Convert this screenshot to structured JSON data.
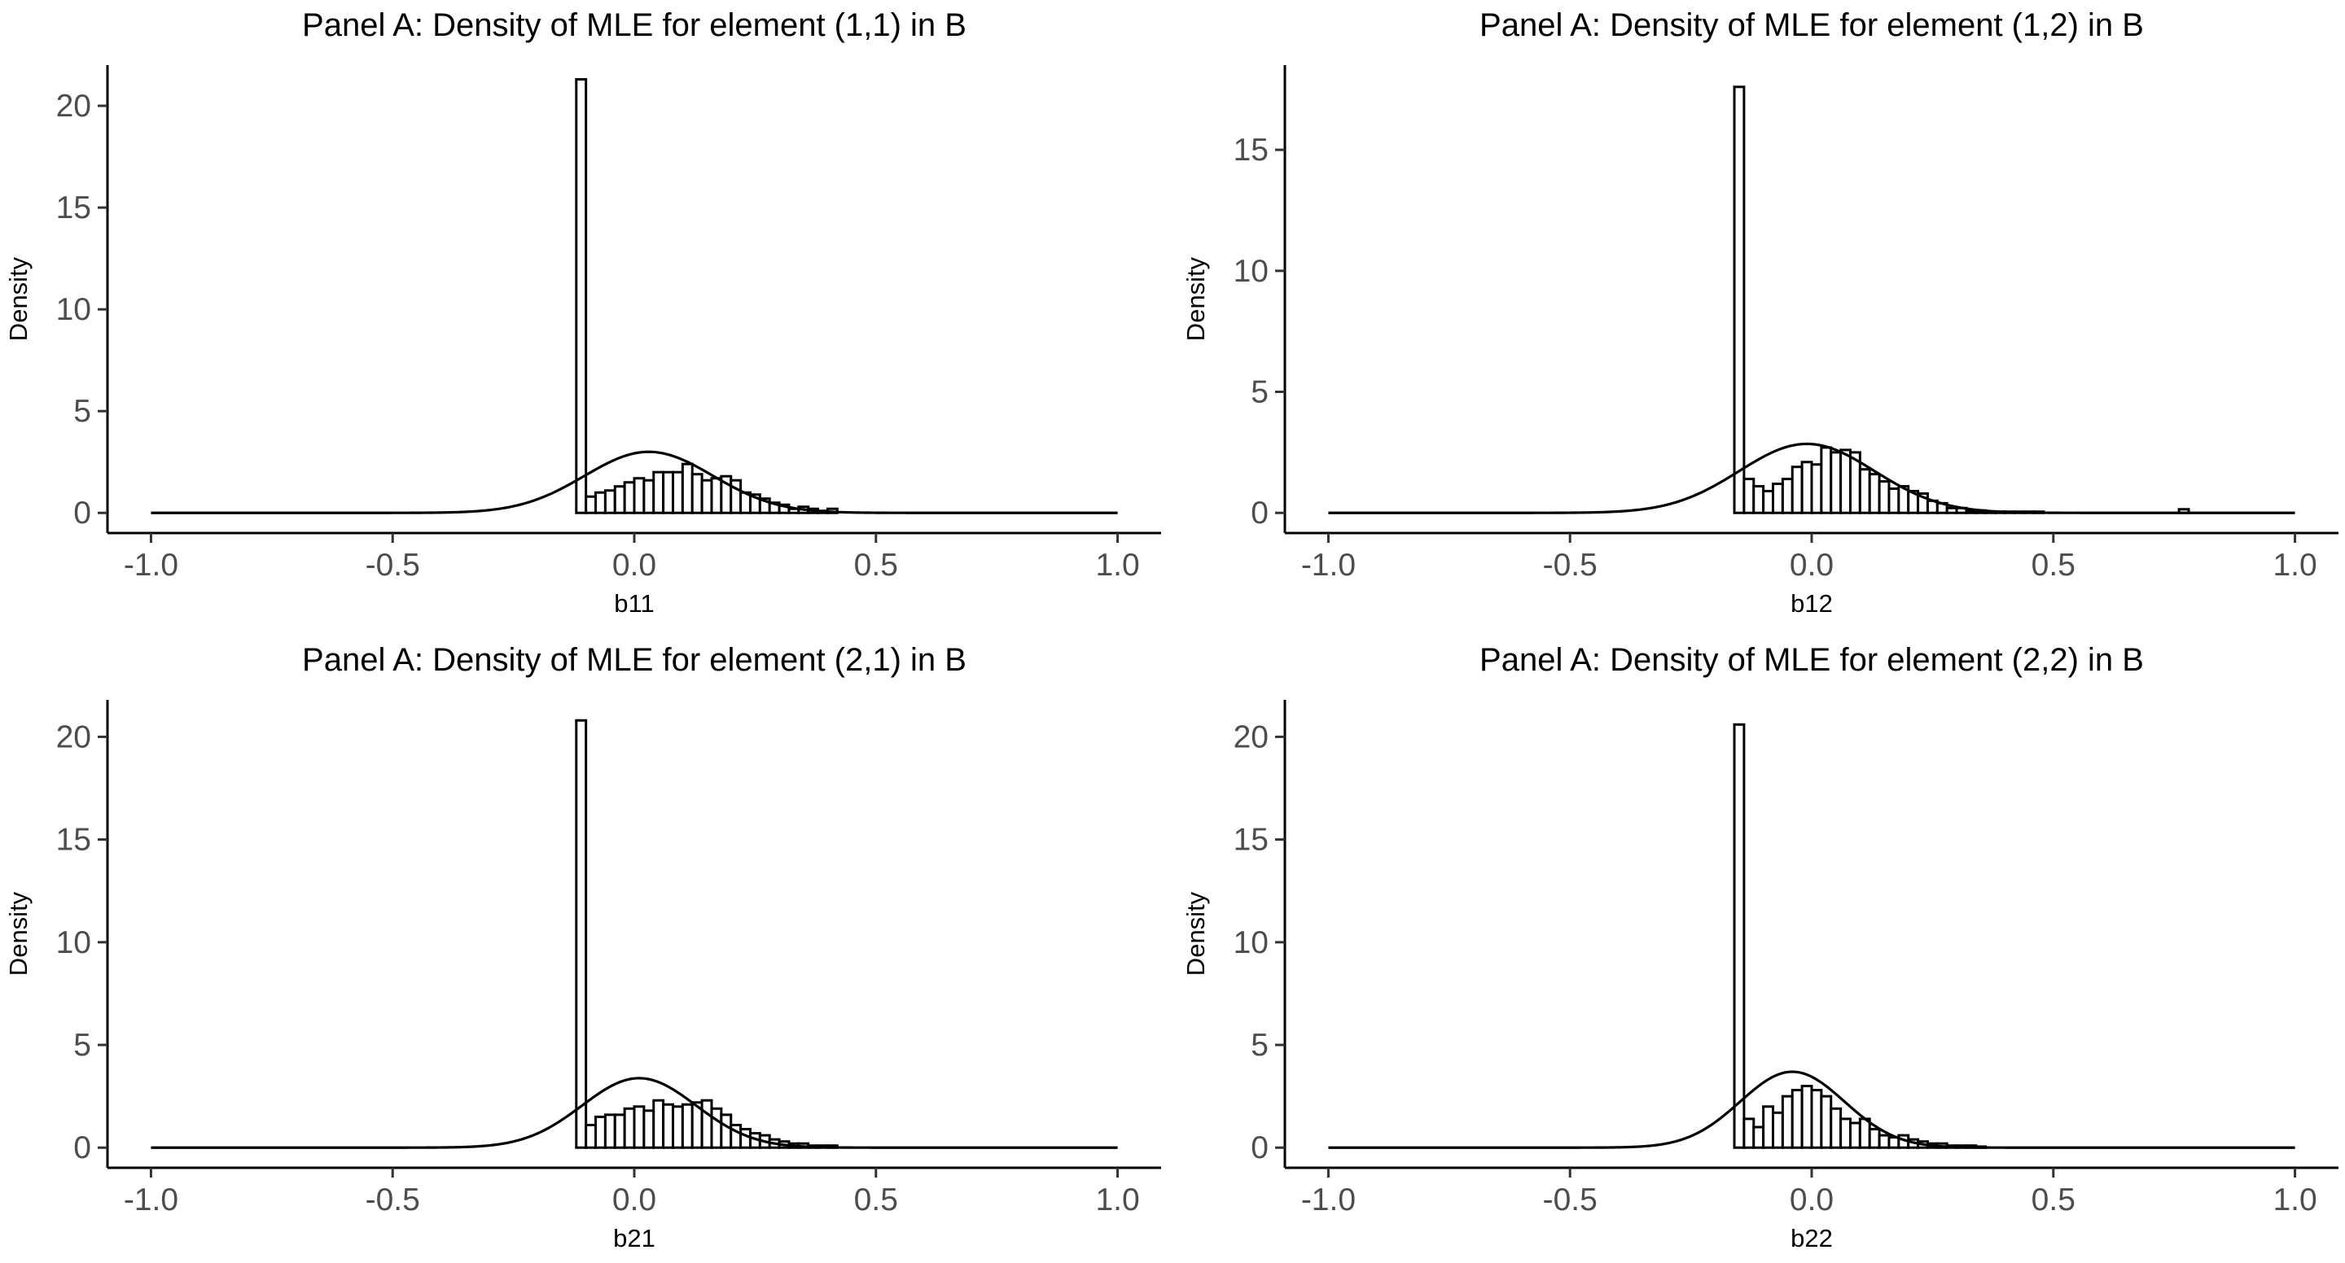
{
  "chart_data": [
    {
      "type": "bar",
      "title": "Panel A: Density of MLE for element (1,1) in B",
      "xlabel": "b11",
      "ylabel": "Density",
      "xlim": [
        -1.0,
        1.0
      ],
      "ylim": [
        0,
        22
      ],
      "xticks": [
        "-1.0",
        "-0.5",
        "0.0",
        "0.5",
        "1.0"
      ],
      "yticks": [
        "0",
        "5",
        "10",
        "15",
        "20"
      ],
      "grid": false,
      "histogram": {
        "bin_width": 0.02,
        "bin_starts": [
          -0.12,
          -0.1,
          -0.08,
          -0.06,
          -0.04,
          -0.02,
          0.0,
          0.02,
          0.04,
          0.06,
          0.08,
          0.1,
          0.12,
          0.14,
          0.16,
          0.18,
          0.2,
          0.22,
          0.24,
          0.26,
          0.28,
          0.3,
          0.32,
          0.34,
          0.36,
          0.38,
          0.4
        ],
        "densities": [
          21.3,
          0.8,
          1.0,
          1.1,
          1.3,
          1.5,
          1.7,
          1.6,
          2.0,
          2.0,
          2.0,
          2.4,
          1.9,
          1.6,
          1.7,
          1.8,
          1.6,
          1.0,
          0.9,
          0.7,
          0.5,
          0.4,
          0.2,
          0.3,
          0.2,
          0.1,
          0.2
        ]
      },
      "normal_curve": {
        "mean": 0.03,
        "sd": 0.133,
        "x_range": [
          -1.0,
          1.0
        ]
      }
    },
    {
      "type": "bar",
      "title": "Panel A: Density of MLE for element (1,2) in B",
      "xlabel": "b12",
      "ylabel": "Density",
      "xlim": [
        -1.0,
        1.0
      ],
      "ylim": [
        0,
        18.5
      ],
      "xticks": [
        "-1.0",
        "-0.5",
        "0.0",
        "0.5",
        "1.0"
      ],
      "yticks": [
        "0",
        "5",
        "10",
        "15"
      ],
      "grid": false,
      "histogram": {
        "bin_width": 0.02,
        "bin_starts": [
          -0.16,
          -0.14,
          -0.12,
          -0.1,
          -0.08,
          -0.06,
          -0.04,
          -0.02,
          0.0,
          0.02,
          0.04,
          0.06,
          0.08,
          0.1,
          0.12,
          0.14,
          0.16,
          0.18,
          0.2,
          0.22,
          0.24,
          0.26,
          0.28,
          0.3,
          0.32,
          0.34,
          0.36,
          0.38,
          0.4,
          0.42,
          0.44,
          0.46,
          0.76
        ],
        "densities": [
          17.6,
          1.4,
          1.1,
          0.9,
          1.2,
          1.4,
          1.9,
          2.1,
          2.0,
          2.7,
          2.5,
          2.6,
          2.5,
          1.8,
          1.6,
          1.3,
          1.0,
          1.1,
          0.9,
          0.8,
          0.5,
          0.4,
          0.2,
          0.2,
          0.1,
          0.1,
          0.05,
          0.05,
          0.05,
          0.05,
          0.05,
          0.05,
          0.15
        ]
      },
      "normal_curve": {
        "mean": -0.01,
        "sd": 0.14,
        "x_range": [
          -1.0,
          1.0
        ]
      }
    },
    {
      "type": "bar",
      "title": "Panel A: Density of MLE for element (2,1) in B",
      "xlabel": "b21",
      "ylabel": "Density",
      "xlim": [
        -1.0,
        1.0
      ],
      "ylim": [
        0,
        21.8
      ],
      "xticks": [
        "-1.0",
        "-0.5",
        "0.0",
        "0.5",
        "1.0"
      ],
      "yticks": [
        "0",
        "5",
        "10",
        "15",
        "20"
      ],
      "grid": false,
      "histogram": {
        "bin_width": 0.02,
        "bin_starts": [
          -0.12,
          -0.1,
          -0.08,
          -0.06,
          -0.04,
          -0.02,
          0.0,
          0.02,
          0.04,
          0.06,
          0.08,
          0.1,
          0.12,
          0.14,
          0.16,
          0.18,
          0.2,
          0.22,
          0.24,
          0.26,
          0.28,
          0.3,
          0.32,
          0.34,
          0.36,
          0.38,
          0.4
        ],
        "densities": [
          20.8,
          1.1,
          1.5,
          1.6,
          1.6,
          1.9,
          2.0,
          1.8,
          2.3,
          2.1,
          2.0,
          2.1,
          2.2,
          2.3,
          1.9,
          1.6,
          1.1,
          0.9,
          0.7,
          0.6,
          0.4,
          0.3,
          0.2,
          0.2,
          0.1,
          0.1,
          0.1
        ]
      },
      "normal_curve": {
        "mean": 0.01,
        "sd": 0.118,
        "x_range": [
          -1.0,
          1.0
        ]
      }
    },
    {
      "type": "bar",
      "title": "Panel A: Density of MLE for element (2,2) in B",
      "xlabel": "b22",
      "ylabel": "Density",
      "xlim": [
        -1.0,
        1.0
      ],
      "ylim": [
        0,
        21.8
      ],
      "xticks": [
        "-1.0",
        "-0.5",
        "0.0",
        "0.5",
        "1.0"
      ],
      "yticks": [
        "0",
        "5",
        "10",
        "15",
        "20"
      ],
      "grid": false,
      "histogram": {
        "bin_width": 0.02,
        "bin_starts": [
          -0.16,
          -0.14,
          -0.12,
          -0.1,
          -0.08,
          -0.06,
          -0.04,
          -0.02,
          0.0,
          0.02,
          0.04,
          0.06,
          0.08,
          0.1,
          0.12,
          0.14,
          0.16,
          0.18,
          0.2,
          0.22,
          0.24,
          0.26,
          0.28,
          0.3,
          0.32,
          0.34
        ],
        "densities": [
          20.6,
          1.4,
          1.0,
          2.0,
          1.7,
          2.5,
          2.8,
          3.0,
          2.8,
          2.5,
          1.9,
          1.4,
          1.2,
          1.4,
          0.9,
          0.6,
          0.5,
          0.6,
          0.4,
          0.3,
          0.2,
          0.2,
          0.1,
          0.1,
          0.1,
          0.05
        ]
      },
      "normal_curve": {
        "mean": -0.04,
        "sd": 0.108,
        "x_range": [
          -1.0,
          1.0
        ]
      }
    }
  ]
}
